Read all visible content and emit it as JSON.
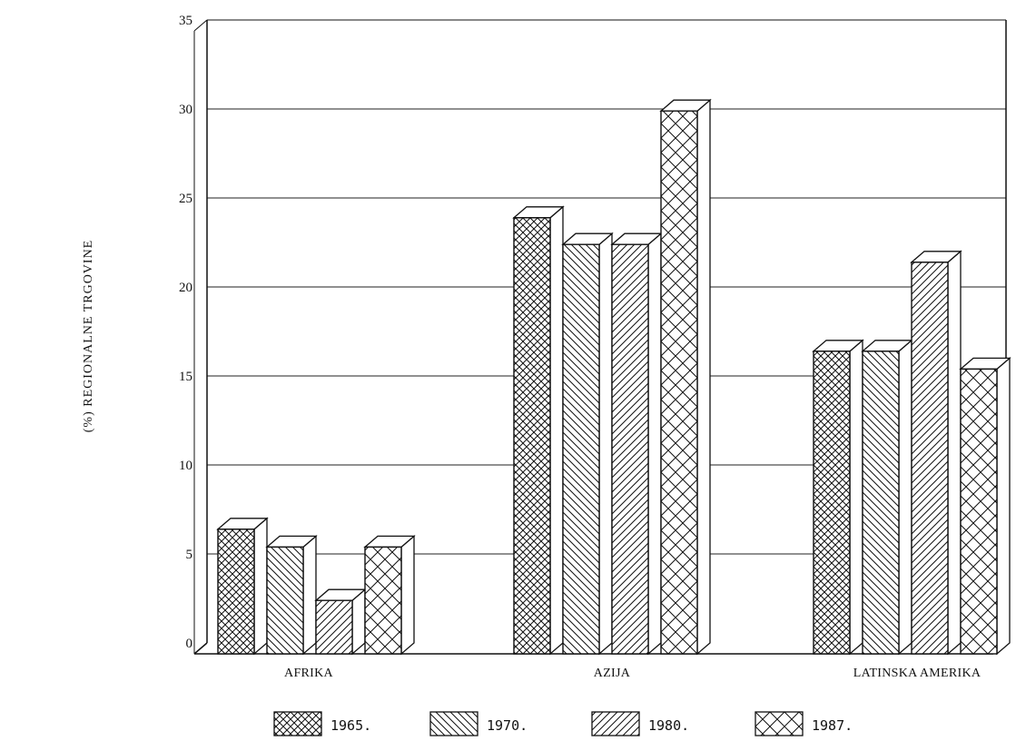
{
  "chart_data": {
    "type": "bar",
    "title": "",
    "xlabel": "",
    "ylabel": "(%) REGIONALNE TRGOVINE",
    "ylim": [
      0,
      35
    ],
    "yticks": [
      "0",
      "5",
      "10",
      "15",
      "20",
      "25",
      "30",
      "35"
    ],
    "grid": true,
    "legend_position": "bottom",
    "style": "3d-hatched",
    "categories": [
      "AFRIKA",
      "AZIJA",
      "LATINSKA AMERIKA"
    ],
    "series": [
      {
        "name": "1965.",
        "values": [
          7,
          24.5,
          17
        ],
        "pattern": "crosshatch-dense"
      },
      {
        "name": "1970.",
        "values": [
          6,
          23,
          17
        ],
        "pattern": "diagonal-backslash"
      },
      {
        "name": "1980.",
        "values": [
          3,
          23,
          22
        ],
        "pattern": "diagonal-slash"
      },
      {
        "name": "1987.",
        "values": [
          6,
          30.5,
          16
        ],
        "pattern": "crosshatch-wide"
      }
    ]
  }
}
